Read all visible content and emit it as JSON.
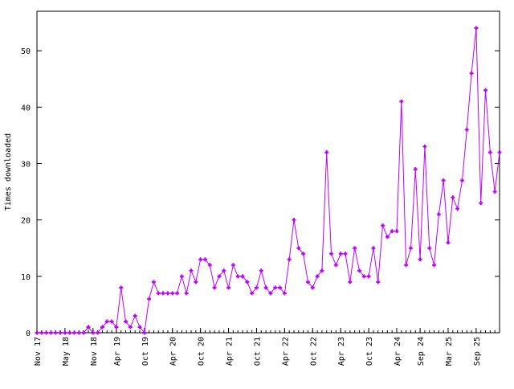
{
  "chart_data": {
    "type": "line",
    "title": "",
    "xlabel": "",
    "ylabel": "Times downloaded",
    "ylim": [
      0,
      57
    ],
    "yticks": [
      0,
      10,
      20,
      30,
      40,
      50
    ],
    "grid": false,
    "line_color": "#bf00ff",
    "x_start": "Nov 17",
    "x_end": "Feb 26",
    "x_tick_labels": [
      {
        "label": "Nov 17",
        "month_offset": 0
      },
      {
        "label": "May 18",
        "month_offset": 6
      },
      {
        "label": "Nov 18",
        "month_offset": 12
      },
      {
        "label": "Apr 19",
        "month_offset": 17
      },
      {
        "label": "Oct 19",
        "month_offset": 23
      },
      {
        "label": "Apr 20",
        "month_offset": 29
      },
      {
        "label": "Oct 20",
        "month_offset": 35
      },
      {
        "label": "Apr 21",
        "month_offset": 41
      },
      {
        "label": "Oct 21",
        "month_offset": 47
      },
      {
        "label": "Apr 22",
        "month_offset": 53
      },
      {
        "label": "Oct 22",
        "month_offset": 59
      },
      {
        "label": "Apr 23",
        "month_offset": 65
      },
      {
        "label": "Oct 23",
        "month_offset": 71
      },
      {
        "label": "Apr 24",
        "month_offset": 77
      },
      {
        "label": "Sep 24",
        "month_offset": 82
      },
      {
        "label": "Mar 25",
        "month_offset": 88
      },
      {
        "label": "Sep 25",
        "month_offset": 94
      }
    ],
    "series": [
      {
        "values": [
          0,
          0,
          0,
          0,
          0,
          0,
          0,
          0,
          0,
          0,
          0,
          1,
          0,
          0,
          1,
          2,
          2,
          1,
          8,
          2,
          1,
          3,
          1,
          0,
          6,
          9,
          7,
          7,
          7,
          7,
          7,
          10,
          7,
          11,
          9,
          13,
          13,
          12,
          8,
          10,
          11,
          8,
          12,
          10,
          10,
          9,
          7,
          8,
          11,
          8,
          7,
          8,
          8,
          7,
          13,
          20,
          15,
          14,
          9,
          8,
          10,
          11,
          32,
          14,
          12,
          14,
          14,
          9,
          15,
          11,
          10,
          10,
          15,
          9,
          19,
          17,
          18,
          18,
          41,
          12,
          15,
          29,
          13,
          33,
          15,
          12,
          21,
          27,
          16,
          24,
          22,
          27,
          36,
          46,
          54,
          23,
          43,
          32,
          25,
          32
        ]
      }
    ]
  }
}
